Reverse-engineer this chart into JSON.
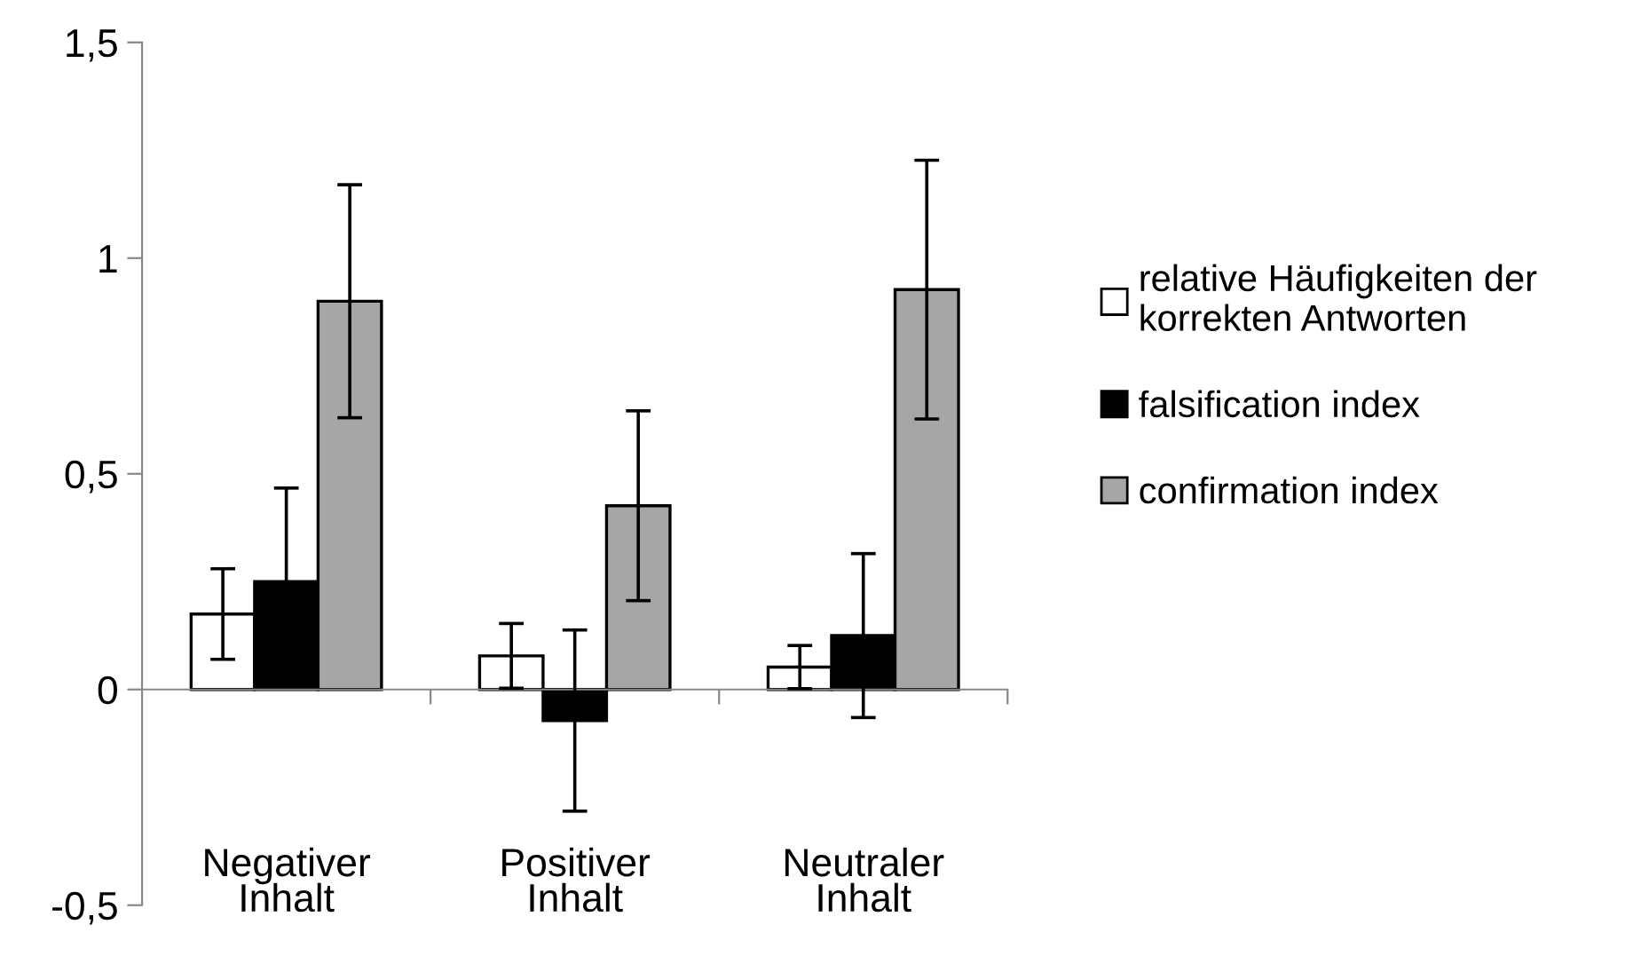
{
  "chart_data": {
    "type": "bar",
    "categories": [
      "Negativer\nInhalt",
      "Positiver\nInhalt",
      "Neutraler\nInhalt"
    ],
    "series": [
      {
        "name": "relative Häufigkeiten der\nkorrekten Antworten",
        "color": "#ffffff",
        "values": [
          0.175,
          0.078,
          0.052
        ],
        "errors": [
          0.105,
          0.075,
          0.05
        ]
      },
      {
        "name": "falsification index",
        "color": "#000000",
        "values": [
          0.25,
          -0.072,
          0.125
        ],
        "errors": [
          0.217,
          0.21,
          0.19
        ]
      },
      {
        "name": "confirmation index",
        "color": "#a6a6a6",
        "values": [
          0.9,
          0.426,
          0.927
        ],
        "errors": [
          0.27,
          0.22,
          0.3
        ]
      }
    ],
    "ylim": [
      -0.5,
      1.5
    ],
    "yticks": [
      {
        "value": -0.5,
        "label": "-0,5"
      },
      0,
      {
        "value": 0.5,
        "label": "0,5"
      },
      1,
      {
        "value": 1.5,
        "label": "1,5"
      }
    ],
    "legend": "right"
  }
}
